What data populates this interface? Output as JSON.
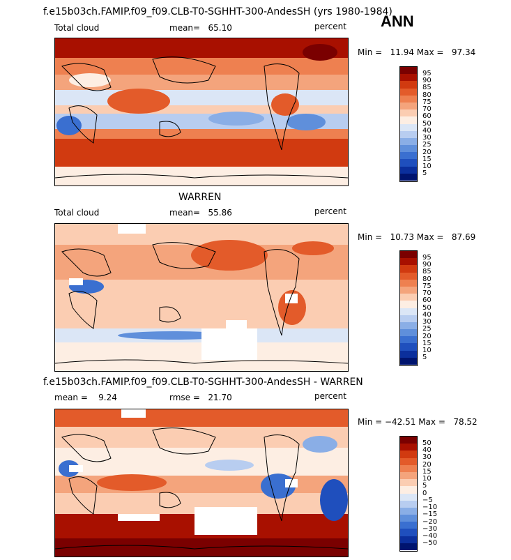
{
  "season": "ANN",
  "colors": {
    "model_obs_scale": [
      "#7a0000",
      "#a81000",
      "#d13a10",
      "#e35b2a",
      "#ee8050",
      "#f4a47c",
      "#fbcdb2",
      "#fdeee3",
      "#dbe6f6",
      "#b8cdf0",
      "#8aaee6",
      "#5f8fdb",
      "#3a6fd0",
      "#1f4fbd",
      "#0b2f9c",
      "#00146e"
    ],
    "diff_scale": [
      "#7a0000",
      "#a81000",
      "#d13a10",
      "#e35b2a",
      "#ee8050",
      "#f4a47c",
      "#fbcdb2",
      "#fdeee3",
      "#dbe6f6",
      "#b8cdf0",
      "#8aaee6",
      "#5f8fdb",
      "#3a6fd0",
      "#1f4fbd",
      "#0b2f9c",
      "#00146e"
    ]
  },
  "panels": [
    {
      "header": "f.e15b03ch.FAMIP.f09_f09.CLB-T0-SGHHT-300-AndesSH (yrs 1980-1984)",
      "variable": "Total cloud",
      "stat1": "mean=   65.10",
      "units": "percent",
      "minmax": "Min =   11.94 Max =   97.34",
      "levels": [
        "95",
        "90",
        "85",
        "80",
        "75",
        "70",
        "60",
        "50",
        "40",
        "30",
        "25",
        "20",
        "15",
        "10",
        "5"
      ]
    },
    {
      "header": "WARREN",
      "variable": "Total cloud",
      "stat1": "mean=   55.86",
      "units": "percent",
      "minmax": "Min =   10.73 Max =   87.69",
      "levels": [
        "95",
        "90",
        "85",
        "80",
        "75",
        "70",
        "60",
        "50",
        "40",
        "30",
        "25",
        "20",
        "15",
        "10",
        "5"
      ]
    },
    {
      "header": "f.e15b03ch.FAMIP.f09_f09.CLB-T0-SGHHT-300-AndesSH - WARREN",
      "stat1": "mean =    9.24",
      "stat2": "rmse =   21.70",
      "units": "percent",
      "minmax": "Min = −42.51 Max =   78.52",
      "levels": [
        "50",
        "40",
        "30",
        "20",
        "15",
        "10",
        "5",
        "0",
        "−5",
        "−10",
        "−15",
        "−20",
        "−30",
        "−40",
        "−50"
      ]
    }
  ]
}
